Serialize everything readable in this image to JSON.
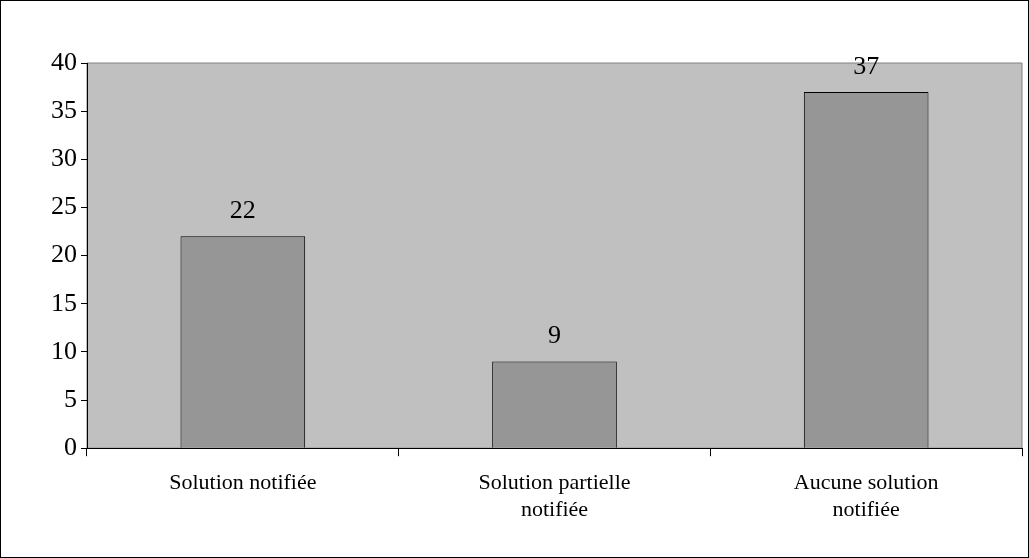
{
  "chart_data": {
    "type": "bar",
    "categories": [
      "Solution notifiée",
      "Solution partielle notifiée",
      "Aucune solution notifiée"
    ],
    "values": [
      22,
      9,
      37
    ],
    "color": "#969696",
    "ylim": [
      0,
      40
    ],
    "yticks": [
      0,
      5,
      10,
      15,
      20,
      25,
      30,
      35,
      40
    ],
    "grid": false,
    "legend": false,
    "data_labels": true
  }
}
